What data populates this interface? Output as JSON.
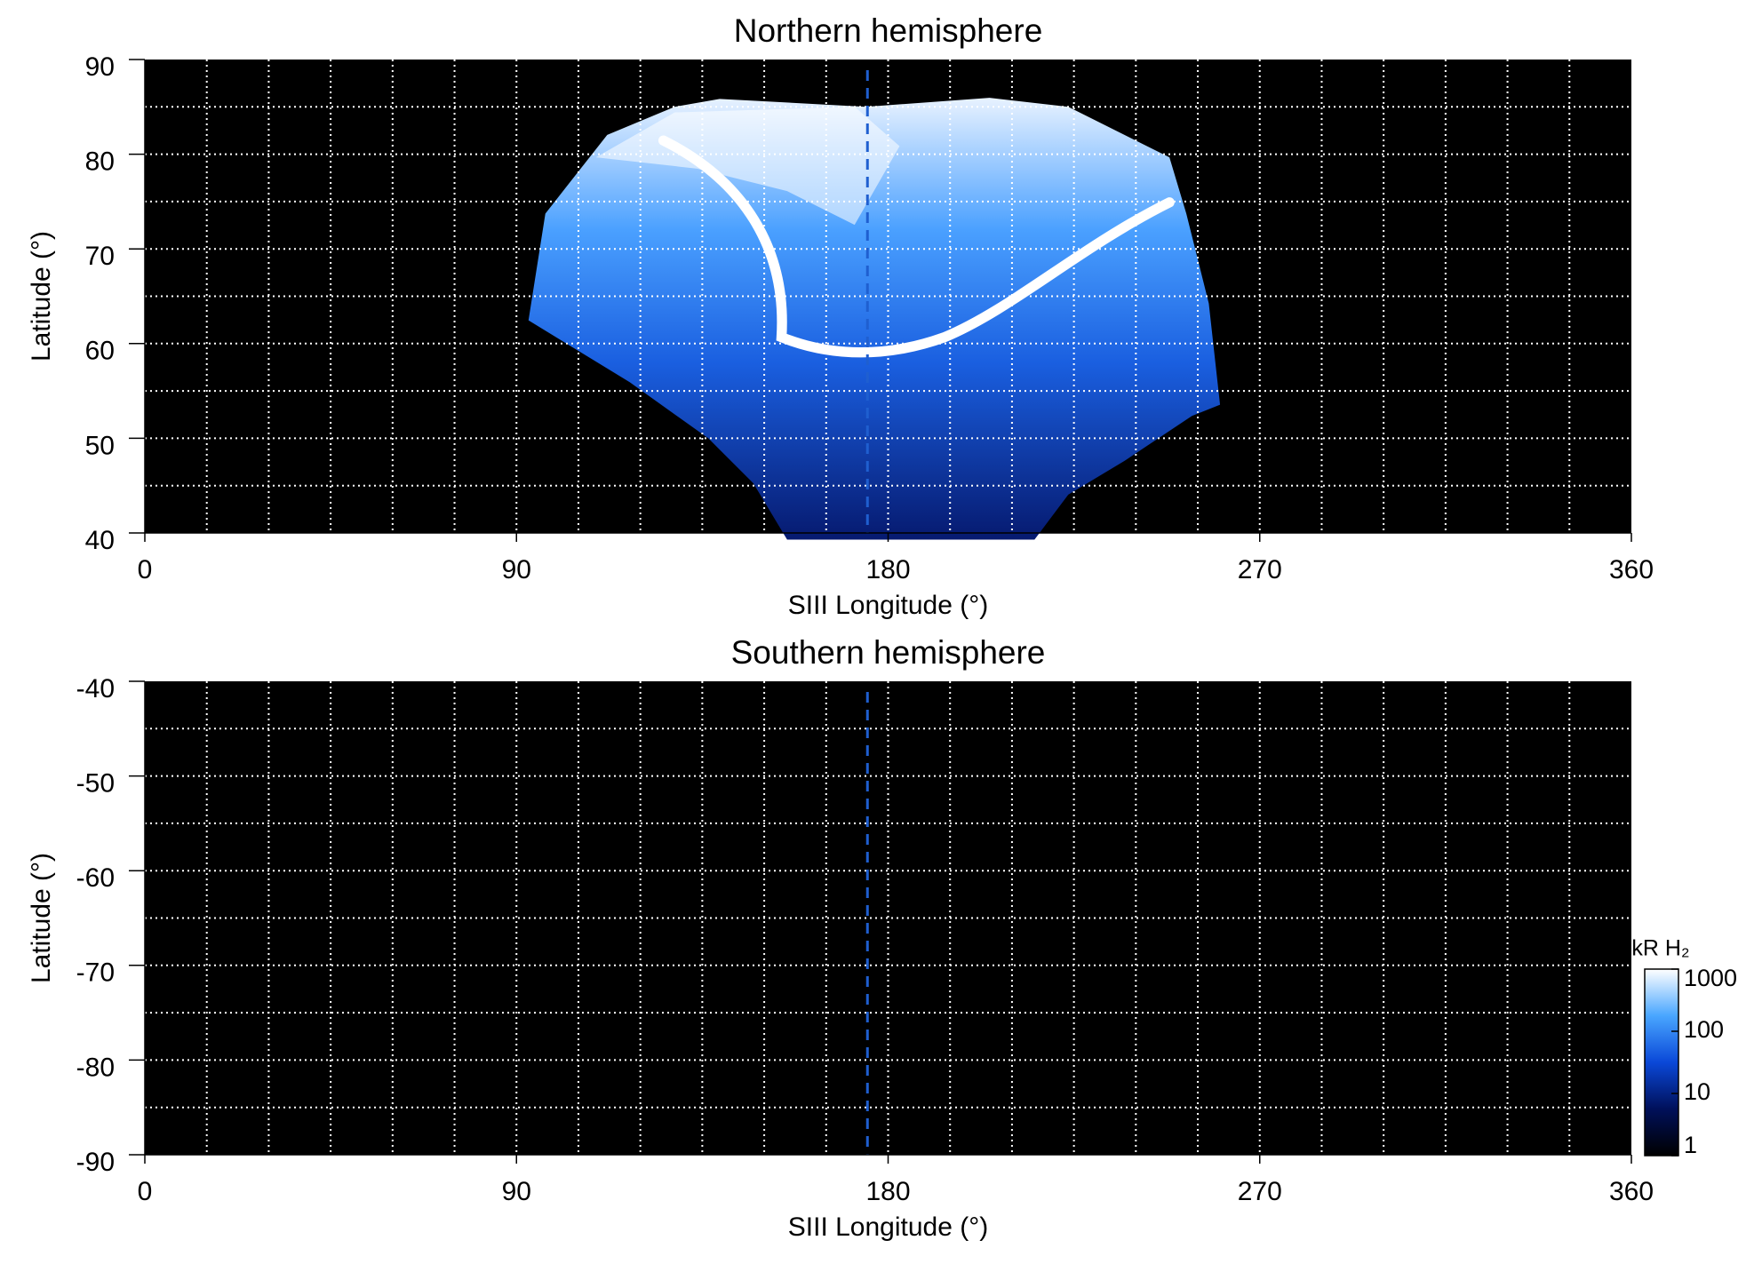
{
  "chart_data": [
    {
      "type": "heatmap",
      "title": "Northern hemisphere",
      "xlabel": "SIII Longitude (°)",
      "ylabel": "Latitude (°)",
      "xlim": [
        0,
        360
      ],
      "xticks": [
        0,
        90,
        180,
        270,
        360
      ],
      "ylim": [
        40,
        90
      ],
      "yticks": [
        40,
        50,
        60,
        70,
        80,
        90
      ],
      "xgrid": [
        15,
        30,
        45,
        60,
        75,
        90,
        105,
        120,
        135,
        150,
        165,
        180,
        195,
        210,
        225,
        240,
        255,
        270,
        285,
        300,
        315,
        330,
        345
      ],
      "ygrid": [
        45,
        50,
        55,
        60,
        65,
        70,
        75,
        80,
        85
      ],
      "marker_longitude": 175,
      "marker_color": "#1f5fd0"
    },
    {
      "type": "heatmap",
      "title": "Southern hemisphere",
      "xlabel": "SIII Longitude (°)",
      "ylabel": "Latitude (°)",
      "xlim": [
        0,
        360
      ],
      "xticks": [
        0,
        90,
        180,
        270,
        360
      ],
      "ylim": [
        -90,
        -40
      ],
      "yticks": [
        -90,
        -80,
        -70,
        -60,
        -50,
        -40
      ],
      "xgrid": [
        15,
        30,
        45,
        60,
        75,
        90,
        105,
        120,
        135,
        150,
        165,
        180,
        195,
        210,
        225,
        240,
        255,
        270,
        285,
        300,
        315,
        330,
        345
      ],
      "ygrid": [
        -85,
        -80,
        -75,
        -70,
        -65,
        -60,
        -55,
        -50,
        -45
      ],
      "marker_longitude": 175,
      "marker_color": "#1f5fd0",
      "colorbar": {
        "label": "kR H₂",
        "lim": [
          1,
          1000
        ],
        "ticks": [
          1,
          10,
          100,
          1000
        ],
        "log": true,
        "colors": [
          "#000000",
          "#00105a",
          "#0a48d8",
          "#49a6ff",
          "#ffffff"
        ]
      }
    }
  ]
}
